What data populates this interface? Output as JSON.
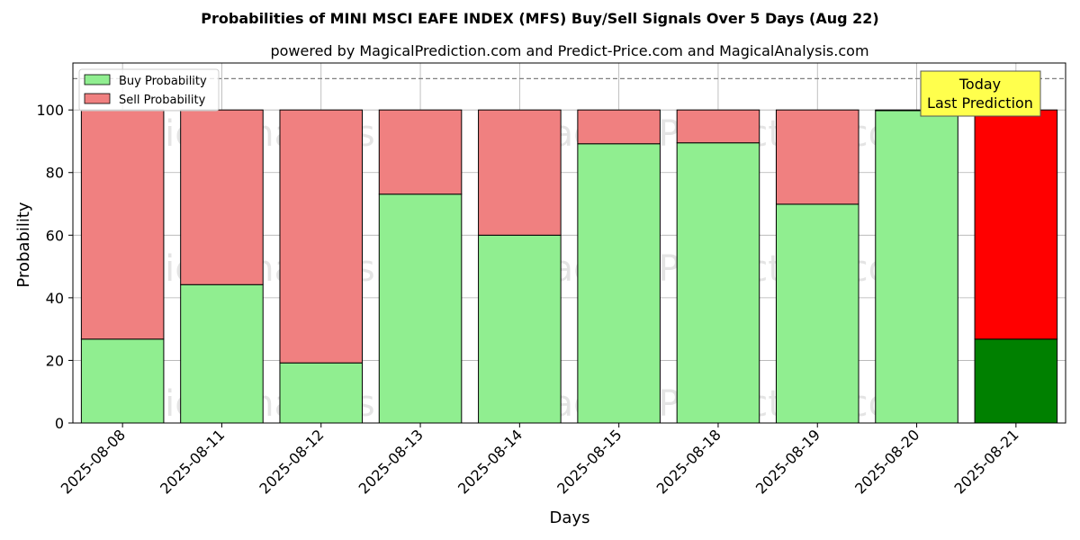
{
  "chart_data": {
    "type": "bar",
    "stacked": true,
    "title": "Probabilities of MINI MSCI EAFE INDEX (MFS) Buy/Sell Signals Over 5 Days (Aug 22)",
    "subtitle": "powered by MagicalPrediction.com and Predict-Price.com and MagicalAnalysis.com",
    "xlabel": "Days",
    "ylabel": "Probability",
    "ylim": [
      0,
      115
    ],
    "yticks": [
      0,
      20,
      40,
      60,
      80,
      100
    ],
    "grid": true,
    "legend_position": "top-left",
    "reference_line": 110,
    "categories": [
      "2025-08-08",
      "2025-08-11",
      "2025-08-12",
      "2025-08-13",
      "2025-08-14",
      "2025-08-15",
      "2025-08-18",
      "2025-08-19",
      "2025-08-20",
      "2025-08-21"
    ],
    "series": [
      {
        "name": "Buy Probability",
        "values": [
          26.8,
          44.2,
          19.2,
          73.1,
          60.0,
          89.2,
          89.5,
          69.9,
          99.8,
          26.8
        ],
        "color": "#90ee90",
        "highlight_color": "#008000"
      },
      {
        "name": "Sell Probability",
        "values": [
          73.2,
          55.8,
          80.8,
          26.9,
          40.0,
          10.8,
          10.5,
          30.1,
          0.2,
          73.2
        ],
        "color": "#f08080",
        "highlight_color": "#ff0000"
      }
    ],
    "highlight_index": 9,
    "annotation": {
      "line1": "Today",
      "line2": "Last Prediction",
      "background": "#ffff4d"
    },
    "watermarks": [
      "MagicalAnalysis.com",
      "MagicalPrediction.com"
    ]
  }
}
